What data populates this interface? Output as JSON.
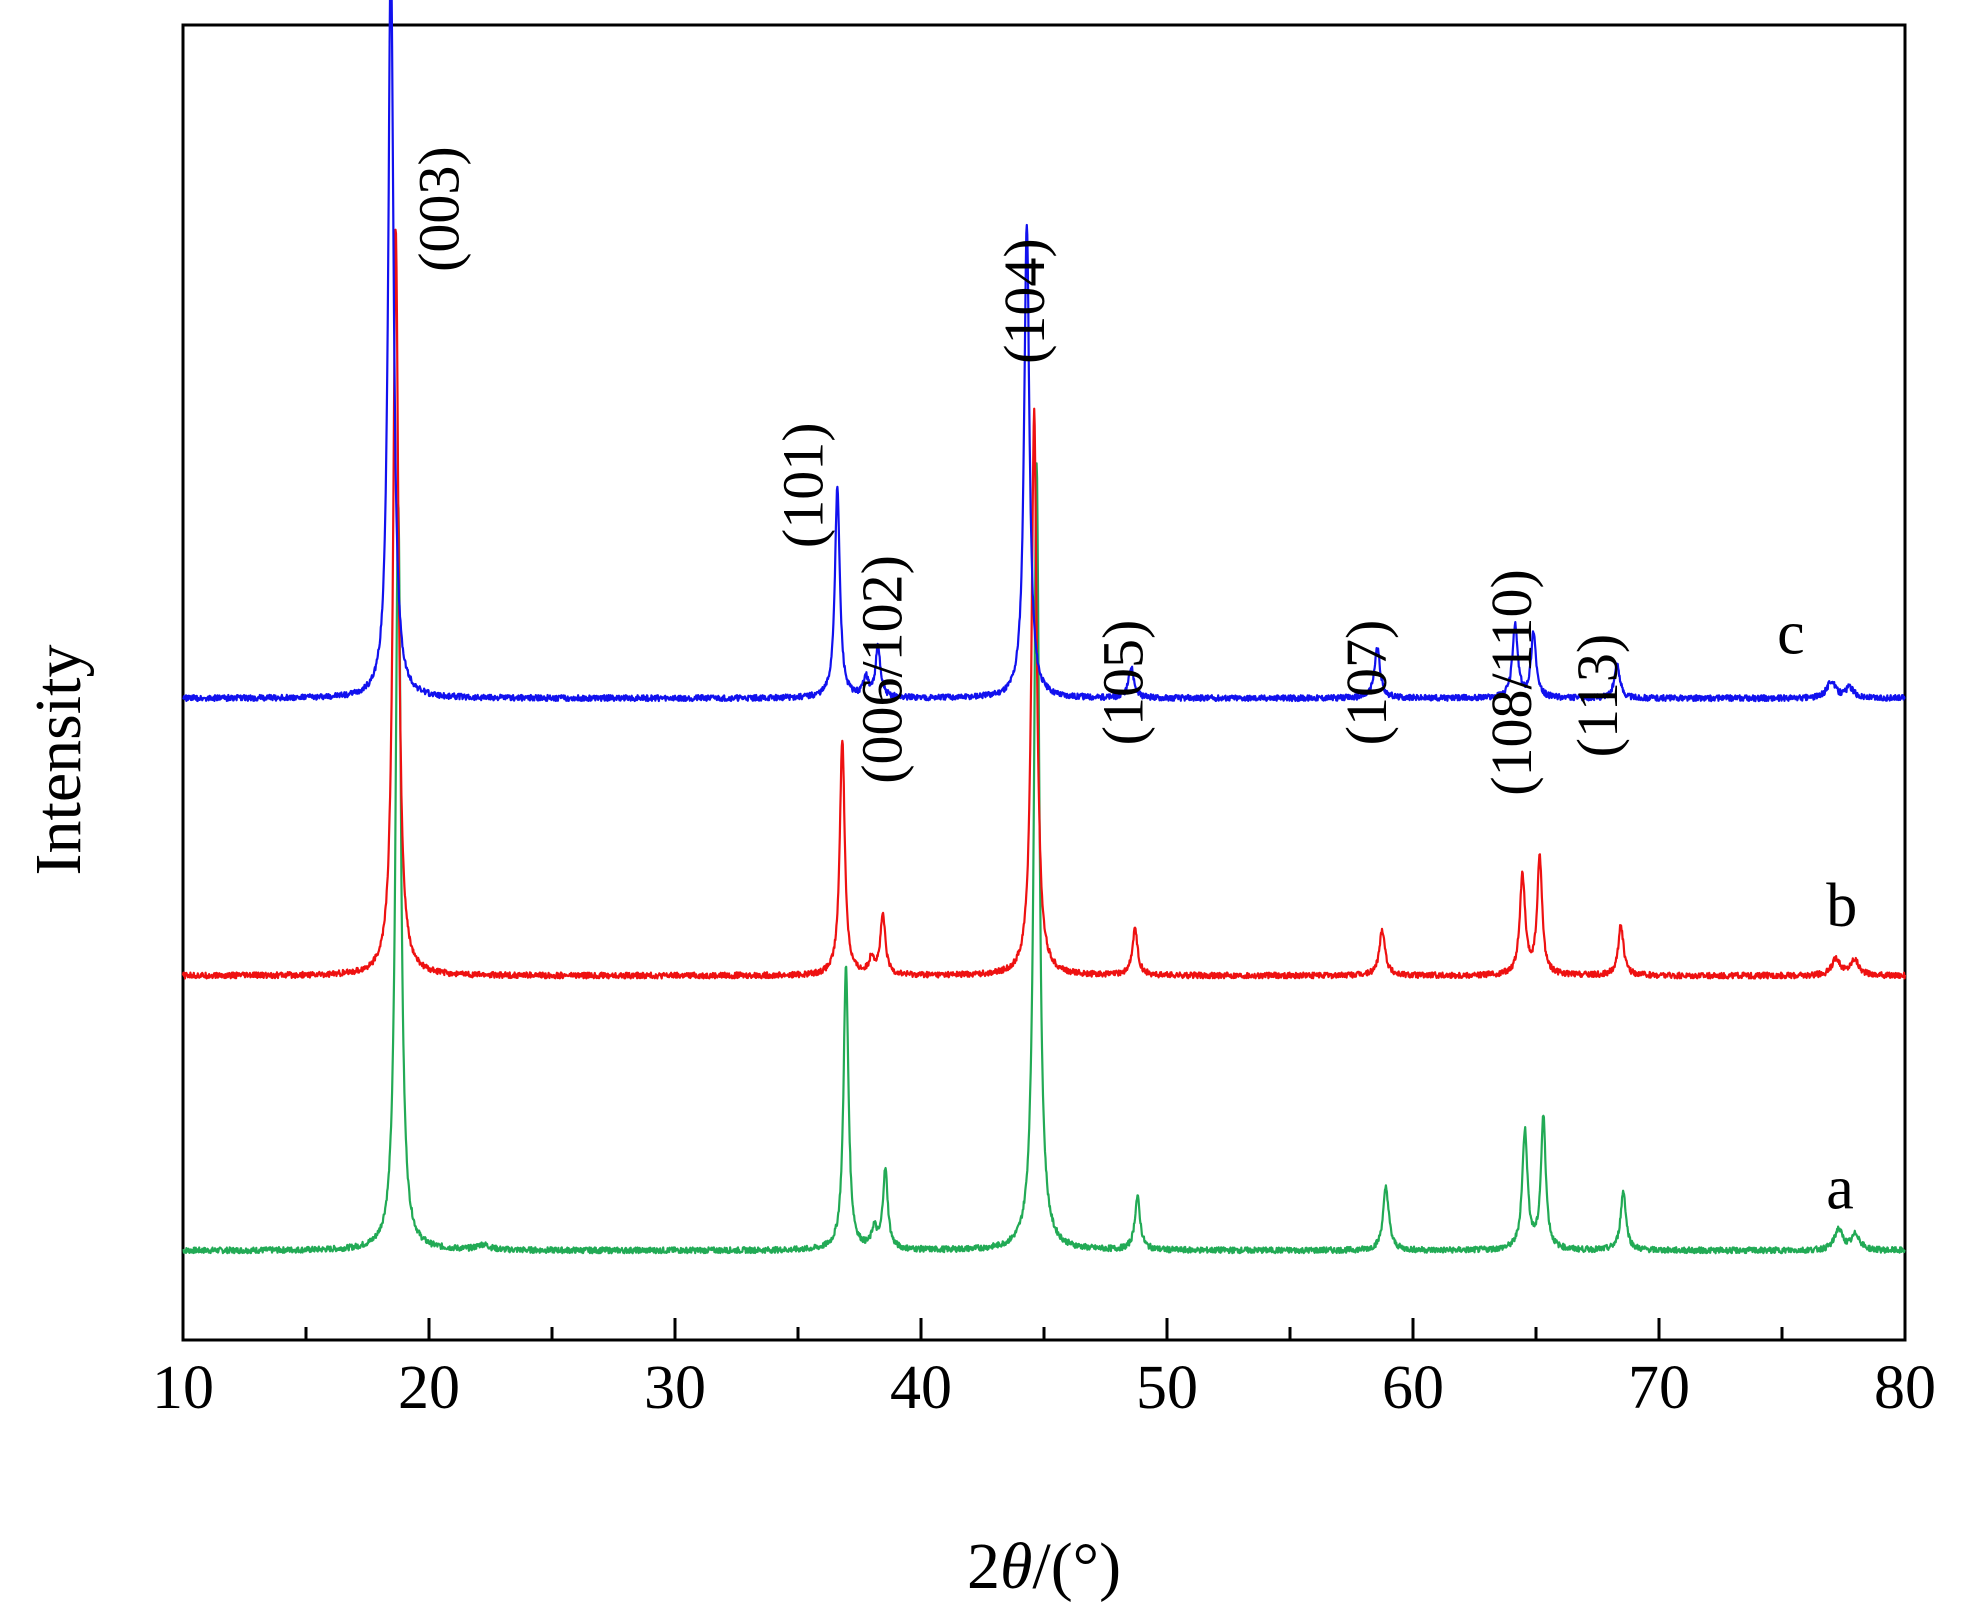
{
  "chart_data": {
    "type": "line",
    "title": "",
    "xlabel": "2θ/(°)",
    "xlabel_parts": {
      "prefix": "2",
      "symbol": "θ",
      "suffix": "/(°)"
    },
    "ylabel": "Intensity",
    "xlim": [
      10,
      80
    ],
    "ylim": [
      0,
      100
    ],
    "x_ticks": [
      "10",
      "20",
      "30",
      "40",
      "50",
      "60",
      "70",
      "80"
    ],
    "x_tick_values": [
      10,
      20,
      30,
      40,
      50,
      60,
      70,
      80
    ],
    "y_ticks_shown": false,
    "grid": false,
    "legend": "inline-right",
    "peak_annotations": [
      {
        "label": "(003)",
        "x": 21.2,
        "y": 86
      },
      {
        "label": "(101)",
        "x": 36.0,
        "y": 65
      },
      {
        "label": "(006/102)",
        "x": 39.2,
        "y": 51
      },
      {
        "label": "(104)",
        "x": 45.0,
        "y": 79
      },
      {
        "label": "(105)",
        "x": 49.0,
        "y": 50
      },
      {
        "label": "(107)",
        "x": 58.9,
        "y": 50
      },
      {
        "label": "(108/110)",
        "x": 64.8,
        "y": 50
      },
      {
        "label": "(113)",
        "x": 68.3,
        "y": 49
      }
    ],
    "series": [
      {
        "name": "a",
        "color": "#22aa55",
        "baseline": 6.8,
        "label_pos": {
          "x": 76.8,
          "y": 10
        },
        "peaks": [
          [
            18.75,
            57,
            0.13
          ],
          [
            36.95,
            21.5,
            0.12
          ],
          [
            38.1,
            1.5,
            0.12
          ],
          [
            38.55,
            6,
            0.12
          ],
          [
            44.7,
            60,
            0.13
          ],
          [
            48.8,
            4,
            0.13
          ],
          [
            58.9,
            4.8,
            0.14
          ],
          [
            64.55,
            9,
            0.13
          ],
          [
            65.3,
            10,
            0.12
          ],
          [
            68.55,
            4.5,
            0.13
          ],
          [
            77.3,
            1.6,
            0.2
          ],
          [
            78.0,
            1.2,
            0.2
          ],
          [
            22.2,
            0.4,
            0.3
          ]
        ]
      },
      {
        "name": "b",
        "color": "#ee1111",
        "baseline": 27.7,
        "label_pos": {
          "x": 76.8,
          "y": 31.5
        },
        "peaks": [
          [
            18.65,
            57,
            0.13
          ],
          [
            36.8,
            18,
            0.12
          ],
          [
            38.0,
            1.3,
            0.12
          ],
          [
            38.45,
            4.5,
            0.12
          ],
          [
            44.6,
            43,
            0.13
          ],
          [
            48.7,
            3.5,
            0.13
          ],
          [
            58.75,
            3.5,
            0.14
          ],
          [
            64.45,
            7.5,
            0.13
          ],
          [
            65.15,
            9,
            0.12
          ],
          [
            68.45,
            3.8,
            0.13
          ],
          [
            77.2,
            1.3,
            0.2
          ],
          [
            77.95,
            1.2,
            0.2
          ]
        ]
      },
      {
        "name": "c",
        "color": "#1111ee",
        "baseline": 48.8,
        "label_pos": {
          "x": 74.8,
          "y": 52.2
        },
        "peaks": [
          [
            18.45,
            57,
            0.13
          ],
          [
            36.6,
            16,
            0.12
          ],
          [
            37.75,
            1.5,
            0.12
          ],
          [
            38.25,
            3.8,
            0.12
          ],
          [
            44.3,
            36,
            0.13
          ],
          [
            48.55,
            2.3,
            0.13
          ],
          [
            58.55,
            3.8,
            0.14
          ],
          [
            64.15,
            5.5,
            0.13
          ],
          [
            64.9,
            5.0,
            0.12
          ],
          [
            68.3,
            2.6,
            0.13
          ],
          [
            77.0,
            1.3,
            0.2
          ],
          [
            77.75,
            0.8,
            0.2
          ]
        ]
      }
    ]
  }
}
